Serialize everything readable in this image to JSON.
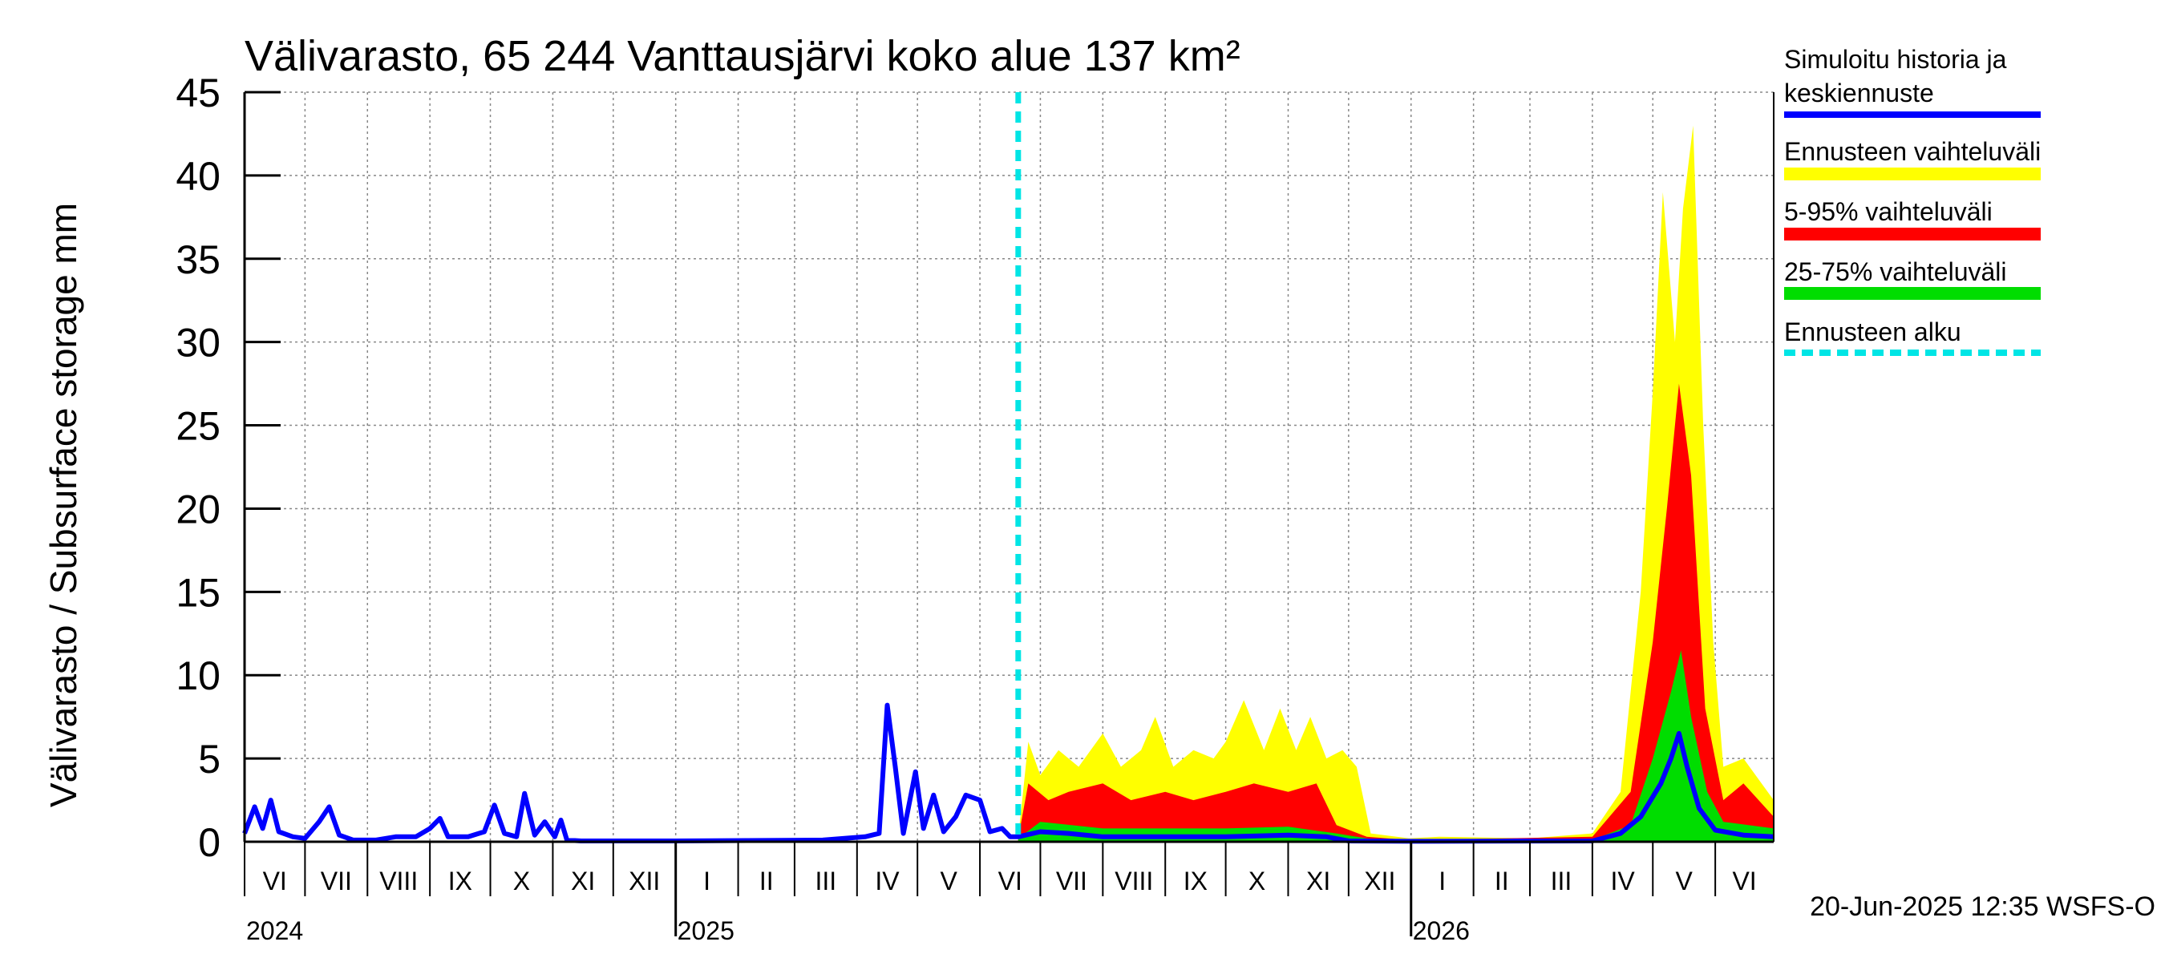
{
  "chart_data": {
    "type": "area",
    "title": "Välivarasto, 65 244 Vanttausjärvi koko alue 137 km²",
    "ylabel": "Välivarasto / Subsurface storage  mm",
    "ylim": [
      0,
      45
    ],
    "yticks": [
      "0",
      "5",
      "10",
      "15",
      "20",
      "25",
      "30",
      "35",
      "40",
      "45"
    ],
    "xlim": [
      "2024-06-01",
      "2026-06-30"
    ],
    "grid": true,
    "months": [
      {
        "label": "VI",
        "start": "2024-06-01"
      },
      {
        "label": "VII",
        "start": "2024-07-01"
      },
      {
        "label": "VIII",
        "start": "2024-08-01"
      },
      {
        "label": "IX",
        "start": "2024-09-01"
      },
      {
        "label": "X",
        "start": "2024-10-01"
      },
      {
        "label": "XI",
        "start": "2024-11-01"
      },
      {
        "label": "XII",
        "start": "2024-12-01"
      },
      {
        "label": "I",
        "start": "2025-01-01"
      },
      {
        "label": "II",
        "start": "2025-02-01"
      },
      {
        "label": "III",
        "start": "2025-03-01"
      },
      {
        "label": "IV",
        "start": "2025-04-01"
      },
      {
        "label": "V",
        "start": "2025-05-01"
      },
      {
        "label": "VI",
        "start": "2025-06-01"
      },
      {
        "label": "VII",
        "start": "2025-07-01"
      },
      {
        "label": "VIII",
        "start": "2025-08-01"
      },
      {
        "label": "IX",
        "start": "2025-09-01"
      },
      {
        "label": "X",
        "start": "2025-10-01"
      },
      {
        "label": "XI",
        "start": "2025-11-01"
      },
      {
        "label": "XII",
        "start": "2025-12-01"
      },
      {
        "label": "I",
        "start": "2026-01-01"
      },
      {
        "label": "II",
        "start": "2026-02-01"
      },
      {
        "label": "III",
        "start": "2026-03-01"
      },
      {
        "label": "IV",
        "start": "2026-04-01"
      },
      {
        "label": "V",
        "start": "2026-05-01"
      },
      {
        "label": "VI",
        "start": "2026-06-01"
      }
    ],
    "years": [
      {
        "label": "2024",
        "date": "2024-06-01"
      },
      {
        "label": "2025",
        "date": "2025-01-01"
      },
      {
        "label": "2026",
        "date": "2026-01-01"
      }
    ],
    "forecast_start": "2025-06-20",
    "legend": [
      {
        "label": "Simuloitu historia ja keskiennuste",
        "color": "#0000ff"
      },
      {
        "label": "Ennusteen vaihteluväli",
        "color": "#ffff00"
      },
      {
        "label": "5-95% vaihteluväli",
        "color": "#ff0000"
      },
      {
        "label": "25-75% vaihteluväli",
        "color": "#00dd00"
      },
      {
        "label": "Ennusteen alku",
        "color": "#00e5e5"
      }
    ],
    "series": [
      {
        "name": "Simuloitu historia ja keskiennuste",
        "points": [
          [
            "2024-06-01",
            0.5
          ],
          [
            "2024-06-06",
            2.1
          ],
          [
            "2024-06-10",
            0.8
          ],
          [
            "2024-06-14",
            2.5
          ],
          [
            "2024-06-18",
            0.6
          ],
          [
            "2024-06-25",
            0.3
          ],
          [
            "2024-07-01",
            0.2
          ],
          [
            "2024-07-08",
            1.2
          ],
          [
            "2024-07-13",
            2.1
          ],
          [
            "2024-07-18",
            0.4
          ],
          [
            "2024-07-25",
            0.1
          ],
          [
            "2024-08-05",
            0.1
          ],
          [
            "2024-08-15",
            0.3
          ],
          [
            "2024-08-25",
            0.3
          ],
          [
            "2024-09-01",
            0.8
          ],
          [
            "2024-09-06",
            1.4
          ],
          [
            "2024-09-10",
            0.3
          ],
          [
            "2024-09-20",
            0.3
          ],
          [
            "2024-09-28",
            0.6
          ],
          [
            "2024-10-03",
            2.2
          ],
          [
            "2024-10-08",
            0.5
          ],
          [
            "2024-10-14",
            0.3
          ],
          [
            "2024-10-18",
            2.9
          ],
          [
            "2024-10-23",
            0.4
          ],
          [
            "2024-10-28",
            1.2
          ],
          [
            "2024-11-02",
            0.3
          ],
          [
            "2024-11-05",
            1.3
          ],
          [
            "2024-11-08",
            0.1
          ],
          [
            "2024-11-15",
            0.05
          ],
          [
            "2025-01-01",
            0.05
          ],
          [
            "2025-03-15",
            0.1
          ],
          [
            "2025-04-05",
            0.3
          ],
          [
            "2025-04-12",
            0.5
          ],
          [
            "2025-04-16",
            8.2
          ],
          [
            "2025-04-20",
            4.5
          ],
          [
            "2025-04-24",
            0.5
          ],
          [
            "2025-04-30",
            4.2
          ],
          [
            "2025-05-04",
            0.8
          ],
          [
            "2025-05-09",
            2.8
          ],
          [
            "2025-05-14",
            0.6
          ],
          [
            "2025-05-20",
            1.5
          ],
          [
            "2025-05-25",
            2.8
          ],
          [
            "2025-06-01",
            2.5
          ],
          [
            "2025-06-06",
            0.6
          ],
          [
            "2025-06-12",
            0.8
          ],
          [
            "2025-06-16",
            0.3
          ],
          [
            "2025-06-20",
            0.3
          ],
          [
            "2025-07-01",
            0.6
          ],
          [
            "2025-07-15",
            0.5
          ],
          [
            "2025-08-01",
            0.3
          ],
          [
            "2025-09-01",
            0.3
          ],
          [
            "2025-10-01",
            0.3
          ],
          [
            "2025-11-01",
            0.4
          ],
          [
            "2025-11-20",
            0.3
          ],
          [
            "2025-12-01",
            0.05
          ],
          [
            "2026-01-01",
            0.03
          ],
          [
            "2026-04-01",
            0.05
          ],
          [
            "2026-04-15",
            0.5
          ],
          [
            "2026-04-25",
            1.5
          ],
          [
            "2026-05-05",
            3.5
          ],
          [
            "2026-05-10",
            5.0
          ],
          [
            "2026-05-14",
            6.5
          ],
          [
            "2026-05-18",
            4.5
          ],
          [
            "2026-05-24",
            2.0
          ],
          [
            "2026-06-01",
            0.7
          ],
          [
            "2026-06-15",
            0.4
          ],
          [
            "2026-06-30",
            0.3
          ]
        ]
      },
      {
        "name": "Ennusteen vaihteluväli",
        "points": [
          [
            "2025-06-20",
            0.2
          ],
          [
            "2025-06-25",
            6.0
          ],
          [
            "2025-07-01",
            4.0
          ],
          [
            "2025-07-10",
            5.5
          ],
          [
            "2025-07-20",
            4.5
          ],
          [
            "2025-08-01",
            6.5
          ],
          [
            "2025-08-10",
            4.5
          ],
          [
            "2025-08-20",
            5.5
          ],
          [
            "2025-08-27",
            7.5
          ],
          [
            "2025-09-05",
            4.5
          ],
          [
            "2025-09-15",
            5.5
          ],
          [
            "2025-09-25",
            5.0
          ],
          [
            "2025-10-01",
            6.0
          ],
          [
            "2025-10-10",
            8.5
          ],
          [
            "2025-10-20",
            5.5
          ],
          [
            "2025-10-28",
            8.0
          ],
          [
            "2025-11-05",
            5.5
          ],
          [
            "2025-11-12",
            7.5
          ],
          [
            "2025-11-20",
            5.0
          ],
          [
            "2025-11-28",
            5.5
          ],
          [
            "2025-12-05",
            4.5
          ],
          [
            "2025-12-12",
            0.5
          ],
          [
            "2025-12-31",
            0.2
          ],
          [
            "2026-01-15",
            0.3
          ],
          [
            "2026-03-01",
            0.2
          ],
          [
            "2026-04-01",
            0.5
          ],
          [
            "2026-04-15",
            3.0
          ],
          [
            "2026-04-25",
            15.0
          ],
          [
            "2026-05-01",
            27.0
          ],
          [
            "2026-05-06",
            39.0
          ],
          [
            "2026-05-12",
            30.0
          ],
          [
            "2026-05-16",
            38.0
          ],
          [
            "2026-05-21",
            43.0
          ],
          [
            "2026-05-26",
            25.0
          ],
          [
            "2026-05-31",
            12.0
          ],
          [
            "2026-06-05",
            4.5
          ],
          [
            "2026-06-15",
            5.0
          ],
          [
            "2026-06-30",
            2.5
          ]
        ]
      },
      {
        "name": "5-95% vaihteluväli",
        "points": [
          [
            "2025-06-20",
            0.2
          ],
          [
            "2025-06-25",
            3.5
          ],
          [
            "2025-07-05",
            2.5
          ],
          [
            "2025-07-15",
            3.0
          ],
          [
            "2025-08-01",
            3.5
          ],
          [
            "2025-08-15",
            2.5
          ],
          [
            "2025-09-01",
            3.0
          ],
          [
            "2025-09-15",
            2.5
          ],
          [
            "2025-10-01",
            3.0
          ],
          [
            "2025-10-15",
            3.5
          ],
          [
            "2025-11-01",
            3.0
          ],
          [
            "2025-11-15",
            3.5
          ],
          [
            "2025-11-25",
            1.0
          ],
          [
            "2025-12-10",
            0.3
          ],
          [
            "2025-12-31",
            0.1
          ],
          [
            "2026-04-01",
            0.3
          ],
          [
            "2026-04-20",
            3.0
          ],
          [
            "2026-05-01",
            12.0
          ],
          [
            "2026-05-08",
            20.0
          ],
          [
            "2026-05-14",
            27.5
          ],
          [
            "2026-05-20",
            22.0
          ],
          [
            "2026-05-27",
            8.0
          ],
          [
            "2026-06-05",
            2.5
          ],
          [
            "2026-06-15",
            3.5
          ],
          [
            "2026-06-30",
            1.5
          ]
        ]
      },
      {
        "name": "25-75% vaihteluväli",
        "points": [
          [
            "2025-06-20",
            0.2
          ],
          [
            "2025-07-01",
            1.2
          ],
          [
            "2025-08-01",
            0.8
          ],
          [
            "2025-09-01",
            0.8
          ],
          [
            "2025-10-01",
            0.8
          ],
          [
            "2025-11-01",
            0.9
          ],
          [
            "2025-11-25",
            0.5
          ],
          [
            "2025-12-15",
            0.1
          ],
          [
            "2026-04-01",
            0.1
          ],
          [
            "2026-04-20",
            1.0
          ],
          [
            "2026-05-01",
            5.0
          ],
          [
            "2026-05-10",
            9.0
          ],
          [
            "2026-05-15",
            11.5
          ],
          [
            "2026-05-20",
            7.5
          ],
          [
            "2026-05-28",
            3.0
          ],
          [
            "2026-06-05",
            1.2
          ],
          [
            "2026-06-30",
            0.8
          ]
        ]
      }
    ]
  },
  "footer": {
    "timestamp": "20-Jun-2025 12:35 WSFS-O"
  }
}
